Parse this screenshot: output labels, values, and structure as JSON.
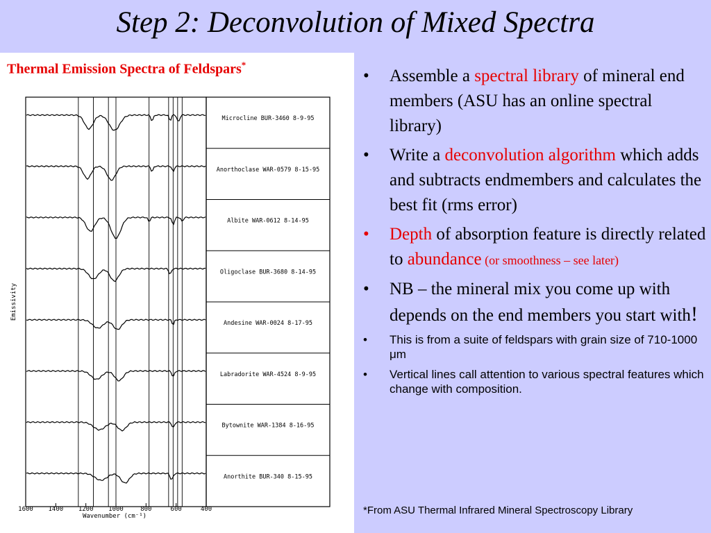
{
  "slide": {
    "title": "Step 2: Deconvolution of Mixed Spectra"
  },
  "figure": {
    "caption": "Thermal Emission Spectra of Feldspars",
    "caption_mark": "*",
    "ylabel": "Emissivity",
    "xlabel": "Wavenumber (cm⁻¹)",
    "x_ticks": [
      "1600",
      "1400",
      "1200",
      "1000",
      "800",
      "600",
      "400"
    ],
    "spectra": [
      "Microcline BUR-3460 8-9-95",
      "Anorthoclase WAR-0579 8-15-95",
      "Albite WAR-0612 8-14-95",
      "Oligoclase BUR-3680 8-14-95",
      "Andesine WAR-0024 8-17-95",
      "Labradorite WAR-4524 8-9-95",
      "Bytownite WAR-1384 8-16-95",
      "Anorthite BUR-340 8-15-95"
    ]
  },
  "bullets": {
    "b1": {
      "pre": "Assemble a ",
      "highlight": "spectral library",
      "post": " of mineral end members (ASU has an online spectral library)"
    },
    "b2": {
      "pre": "Write a ",
      "highlight": "deconvolution algorithm",
      "post": " which adds and subtracts endmembers and calculates the best fit (rms error)"
    },
    "b3": {
      "highlight1": "Depth",
      "mid": " of absorption feature is directly related to ",
      "highlight2": "abundance",
      "note": " (or smoothness – see later)"
    },
    "b4": {
      "text": "NB – the mineral mix you come up with depends on the end members you start with",
      "exclaim": "!"
    },
    "b5": {
      "text": "This is from a suite of feldspars with grain size of 710-1000 μm"
    },
    "b6": {
      "text": "Vertical lines call attention to various spectral features which change with composition."
    }
  },
  "footnote": "*From ASU Thermal Infrared Mineral Spectroscopy Library",
  "colors": {
    "background": "#ccccff",
    "accent_red": "#e60000"
  }
}
